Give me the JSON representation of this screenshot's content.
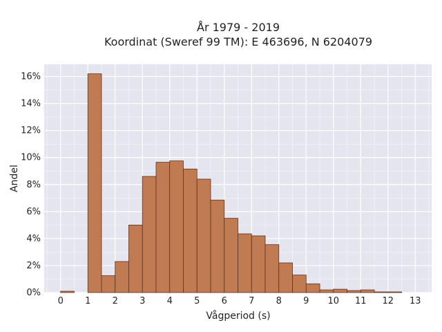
{
  "chart_data": {
    "type": "bar",
    "title_lines": [
      "År 1979 - 2019",
      "Koordinat (Sweref 99 TM): E 463696, N 6204079"
    ],
    "xlabel": "Vågperiod (s)",
    "ylabel": "Andel",
    "bin_width": 0.5,
    "bin_starts": [
      0,
      0.5,
      1.0,
      1.5,
      2.0,
      2.5,
      3.0,
      3.5,
      4.0,
      4.5,
      5.0,
      5.5,
      6.0,
      6.5,
      7.0,
      7.5,
      8.0,
      8.5,
      9.0,
      9.5,
      10.0,
      10.5,
      11.0,
      11.5,
      12.0,
      12.5,
      13.0
    ],
    "values": [
      0.1,
      0.0,
      16.2,
      1.25,
      2.3,
      5.0,
      8.6,
      9.65,
      9.75,
      9.15,
      8.4,
      6.85,
      5.5,
      4.35,
      4.2,
      3.55,
      2.2,
      1.3,
      0.65,
      0.2,
      0.25,
      0.15,
      0.2,
      0.05,
      0.05,
      0.0,
      0.0
    ],
    "xlim": [
      -0.6,
      13.6
    ],
    "ylim": [
      0,
      16.9
    ],
    "xticks": [
      0,
      1,
      2,
      3,
      4,
      5,
      6,
      7,
      8,
      9,
      10,
      11,
      12,
      13
    ],
    "xtick_labels": [
      "0",
      "1",
      "2",
      "3",
      "4",
      "5",
      "6",
      "7",
      "8",
      "9",
      "10",
      "11",
      "12",
      "13"
    ],
    "yticks": [
      0,
      2,
      4,
      6,
      8,
      10,
      12,
      14,
      16
    ],
    "ytick_labels": [
      "0%",
      "2%",
      "4%",
      "6%",
      "8%",
      "10%",
      "12%",
      "14%",
      "16%"
    ],
    "grid": true,
    "bar_color": "#c17b53",
    "bar_edge_color": "#5a3420",
    "plot_background": "#e5e5ef",
    "grid_color": "#ffffff"
  }
}
